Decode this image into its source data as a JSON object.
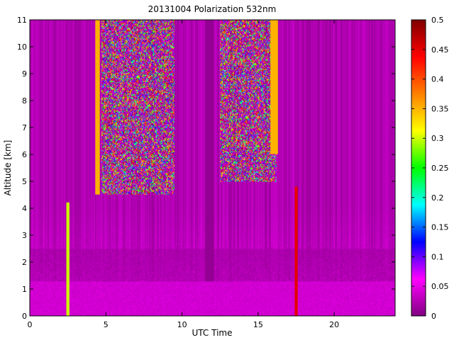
{
  "chart_data": {
    "type": "heatmap",
    "title": "20131004 Polarization 532nm",
    "xlabel": "UTC Time",
    "ylabel": "Altitude [km]",
    "xlim": [
      0,
      24
    ],
    "ylim": [
      0,
      11
    ],
    "x_ticks": [
      0,
      5,
      10,
      15,
      20
    ],
    "y_ticks": [
      0,
      1,
      2,
      3,
      4,
      5,
      6,
      7,
      8,
      9,
      10,
      11
    ],
    "colorbar": {
      "range": [
        0,
        0.5
      ],
      "ticks": [
        0,
        0.05,
        0.1,
        0.15,
        0.2,
        0.25,
        0.3,
        0.35,
        0.4,
        0.45,
        0.5
      ],
      "colormap": [
        "#800080",
        "#ff00ff",
        "#0000ff",
        "#00ffff",
        "#00ff00",
        "#ffff00",
        "#ff8000",
        "#ff0000",
        "#800000"
      ]
    },
    "features": [
      {
        "time_range": [
          11.5,
          12.1
        ],
        "altitude_range": [
          0,
          11
        ],
        "value": 0.01
      },
      {
        "time_range": [
          2.4,
          2.6
        ],
        "altitude_range": [
          0,
          4.2
        ],
        "value": 0.3
      },
      {
        "time_range": [
          17.4,
          17.6
        ],
        "altitude_range": [
          0,
          4.8
        ],
        "value": 0.45
      },
      {
        "time_range": [
          4.3,
          4.6
        ],
        "altitude_range": [
          4.5,
          11
        ],
        "value": 0.35
      },
      {
        "time_range": [
          4.7,
          9.5
        ],
        "altitude_range": [
          4.5,
          11
        ],
        "value": 0.2
      },
      {
        "time_range": [
          12.5,
          16.2
        ],
        "altitude_range": [
          5.0,
          11
        ],
        "value": 0.2
      },
      {
        "time_range": [
          15.8,
          16.3
        ],
        "altitude_range": [
          6,
          11
        ],
        "value": 0.35
      },
      {
        "time_range": [
          0,
          24
        ],
        "altitude_range": [
          0,
          1.3
        ],
        "value": 0.04
      }
    ],
    "grid": false,
    "legend": "colorbar-right"
  }
}
